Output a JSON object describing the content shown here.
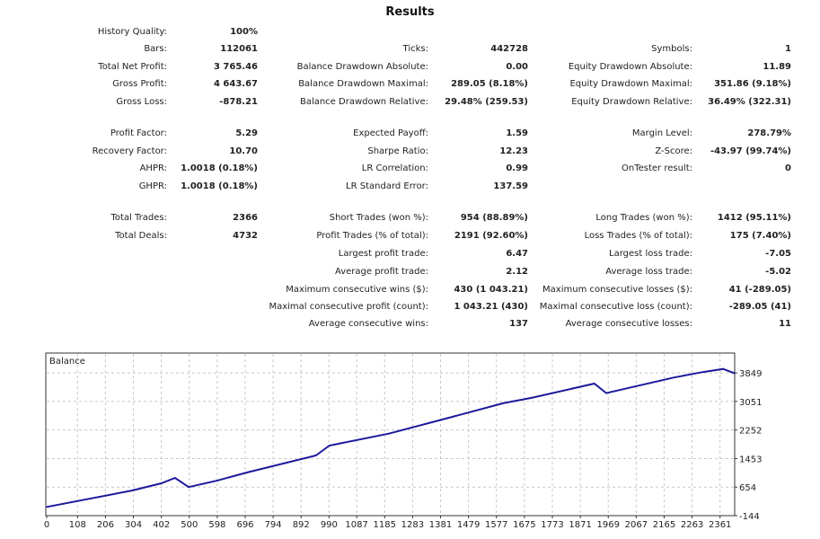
{
  "title": "Results",
  "rows": [
    [
      {
        "label": "History Quality:",
        "value": "100%"
      },
      null,
      null
    ],
    [
      {
        "label": "Bars:",
        "value": "112061"
      },
      {
        "label": "Ticks:",
        "value": "442728"
      },
      {
        "label": "Symbols:",
        "value": "1"
      }
    ],
    [
      {
        "label": "Total Net Profit:",
        "value": "3 765.46"
      },
      {
        "label": "Balance Drawdown Absolute:",
        "value": "0.00"
      },
      {
        "label": "Equity Drawdown Absolute:",
        "value": "11.89"
      }
    ],
    [
      {
        "label": "Gross Profit:",
        "value": "4 643.67"
      },
      {
        "label": "Balance Drawdown Maximal:",
        "value": "289.05 (8.18%)"
      },
      {
        "label": "Equity Drawdown Maximal:",
        "value": "351.86 (9.18%)"
      }
    ],
    [
      {
        "label": "Gross Loss:",
        "value": "-878.21"
      },
      {
        "label": "Balance Drawdown Relative:",
        "value": "29.48% (259.53)"
      },
      {
        "label": "Equity Drawdown Relative:",
        "value": "36.49% (322.31)"
      }
    ],
    [
      {
        "label": "Profit Factor:",
        "value": "5.29"
      },
      {
        "label": "Expected Payoff:",
        "value": "1.59"
      },
      {
        "label": "Margin Level:",
        "value": "278.79%"
      }
    ],
    [
      {
        "label": "Recovery Factor:",
        "value": "10.70"
      },
      {
        "label": "Sharpe Ratio:",
        "value": "12.23"
      },
      {
        "label": "Z-Score:",
        "value": "-43.97 (99.74%)"
      }
    ],
    [
      {
        "label": "AHPR:",
        "value": "1.0018 (0.18%)"
      },
      {
        "label": "LR Correlation:",
        "value": "0.99"
      },
      {
        "label": "OnTester result:",
        "value": "0"
      }
    ],
    [
      {
        "label": "GHPR:",
        "value": "1.0018 (0.18%)"
      },
      {
        "label": "LR Standard Error:",
        "value": "137.59"
      },
      null
    ],
    [
      {
        "label": "Total Trades:",
        "value": "2366"
      },
      {
        "label": "Short Trades (won %):",
        "value": "954 (88.89%)"
      },
      {
        "label": "Long Trades (won %):",
        "value": "1412 (95.11%)"
      }
    ],
    [
      {
        "label": "Total Deals:",
        "value": "4732"
      },
      {
        "label": "Profit Trades (% of total):",
        "value": "2191 (92.60%)"
      },
      {
        "label": "Loss Trades (% of total):",
        "value": "175 (7.40%)"
      }
    ],
    [
      null,
      {
        "label": "Largest profit trade:",
        "value": "6.47"
      },
      {
        "label": "Largest loss trade:",
        "value": "-7.05"
      }
    ],
    [
      null,
      {
        "label": "Average profit trade:",
        "value": "2.12"
      },
      {
        "label": "Average loss trade:",
        "value": "-5.02"
      }
    ],
    [
      null,
      {
        "label": "Maximum consecutive wins ($):",
        "value": "430 (1 043.21)"
      },
      {
        "label": "Maximum consecutive losses ($):",
        "value": "41 (-289.05)"
      }
    ],
    [
      null,
      {
        "label": "Maximal consecutive profit (count):",
        "value": "1 043.21 (430)"
      },
      {
        "label": "Maximal consecutive loss (count):",
        "value": "-289.05 (41)"
      }
    ],
    [
      null,
      {
        "label": "Average consecutive wins:",
        "value": "137"
      },
      {
        "label": "Average consecutive losses:",
        "value": "11"
      }
    ]
  ],
  "chart_data": {
    "type": "line",
    "title": "Balance",
    "xlim": [
      0,
      2412
    ],
    "ylim": [
      -144,
      4380
    ],
    "grid": true,
    "line_color": "#1a1a9c",
    "x_ticks": [
      "0",
      "108",
      "206",
      "304",
      "402",
      "500",
      "598",
      "696",
      "794",
      "892",
      "990",
      "1087",
      "1185",
      "1283",
      "1381",
      "1479",
      "1577",
      "1675",
      "1773",
      "1871",
      "1969",
      "2067",
      "2165",
      "2263",
      "2361"
    ],
    "y_ticks": [
      "3849",
      "3051",
      "2252",
      "1453",
      "654",
      "-144"
    ],
    "series": [
      {
        "name": "Balance",
        "x": [
          0,
          300,
          402,
          450,
          498,
          600,
          700,
          944,
          991,
          1200,
          1411,
          1600,
          1700,
          1920,
          1962,
          2200,
          2300,
          2372,
          2412
        ],
        "y": [
          100,
          560,
          760,
          911,
          654,
          840,
          1060,
          1540,
          1816,
          2150,
          2595,
          3000,
          3150,
          3549,
          3283,
          3720,
          3870,
          3960,
          3836
        ]
      }
    ]
  }
}
